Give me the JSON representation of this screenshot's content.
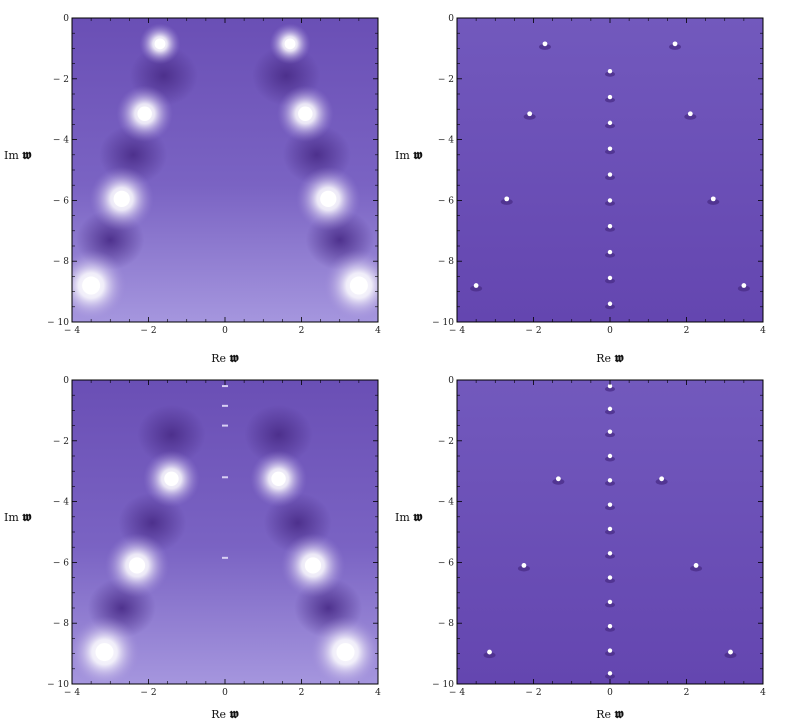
{
  "colors": {
    "density_dark": "#4b2e8a",
    "density_mid": "#6a4fb5",
    "density_light": "#9b86d6",
    "pole_highlight": "#ffffff",
    "frame": "#000000"
  },
  "axis_text": {
    "x_prefix": "Re",
    "y_prefix": "Im",
    "symbol": "𝖜"
  },
  "chart_data": [
    {
      "type": "heatmap",
      "position": "top-left",
      "xlim": [
        -4,
        4
      ],
      "ylim": [
        -10,
        0
      ],
      "x_ticks": [
        -4,
        -2,
        0,
        2,
        4
      ],
      "y_ticks": [
        0,
        -2,
        -4,
        -6,
        -8,
        -10
      ],
      "style": "smooth",
      "poles": [
        {
          "x": -1.7,
          "y": -0.85,
          "strength": 0.4
        },
        {
          "x": 1.7,
          "y": -0.85,
          "strength": 0.4
        },
        {
          "x": -2.1,
          "y": -3.15,
          "strength": 0.7
        },
        {
          "x": 2.1,
          "y": -3.15,
          "strength": 0.7
        },
        {
          "x": -2.7,
          "y": -5.95,
          "strength": 0.85
        },
        {
          "x": 2.7,
          "y": -5.95,
          "strength": 0.85
        },
        {
          "x": -3.5,
          "y": -8.8,
          "strength": 1.0
        },
        {
          "x": 3.5,
          "y": -8.8,
          "strength": 1.0
        }
      ],
      "zeros": [
        {
          "x": -1.6,
          "y": -1.9
        },
        {
          "x": 1.6,
          "y": -1.9
        },
        {
          "x": -2.4,
          "y": -4.5
        },
        {
          "x": 2.4,
          "y": -4.5
        },
        {
          "x": -3.0,
          "y": -7.3
        },
        {
          "x": 3.0,
          "y": -7.3
        }
      ],
      "axis_poles": []
    },
    {
      "type": "heatmap",
      "position": "top-right",
      "xlim": [
        -4,
        4
      ],
      "ylim": [
        -10,
        0
      ],
      "x_ticks": [
        -4,
        -2,
        0,
        2,
        4
      ],
      "y_ticks": [
        0,
        -2,
        -4,
        -6,
        -8,
        -10
      ],
      "style": "sharp",
      "poles": [
        {
          "x": -1.7,
          "y": -0.85
        },
        {
          "x": 1.7,
          "y": -0.85
        },
        {
          "x": -2.1,
          "y": -3.15
        },
        {
          "x": 2.1,
          "y": -3.15
        },
        {
          "x": -2.7,
          "y": -5.95
        },
        {
          "x": 2.7,
          "y": -5.95
        },
        {
          "x": -3.5,
          "y": -8.8
        },
        {
          "x": 3.5,
          "y": -8.8
        }
      ],
      "zeros": [],
      "axis_poles": [
        -1.75,
        -2.6,
        -3.45,
        -4.3,
        -5.15,
        -6.0,
        -6.85,
        -7.7,
        -8.55,
        -9.4
      ]
    },
    {
      "type": "heatmap",
      "position": "bottom-left",
      "xlim": [
        -4,
        4
      ],
      "ylim": [
        -10,
        0
      ],
      "x_ticks": [
        -4,
        -2,
        0,
        2,
        4
      ],
      "y_ticks": [
        0,
        -2,
        -4,
        -6,
        -8,
        -10
      ],
      "style": "smooth",
      "poles": [
        {
          "x": -1.4,
          "y": -3.25,
          "strength": 0.7
        },
        {
          "x": 1.4,
          "y": -3.25,
          "strength": 0.7
        },
        {
          "x": -2.3,
          "y": -6.1,
          "strength": 0.85
        },
        {
          "x": 2.3,
          "y": -6.1,
          "strength": 0.85
        },
        {
          "x": -3.15,
          "y": -8.95,
          "strength": 1.0
        },
        {
          "x": 3.15,
          "y": -8.95,
          "strength": 1.0
        }
      ],
      "zeros": [
        {
          "x": -1.4,
          "y": -1.8
        },
        {
          "x": 1.4,
          "y": -1.8
        },
        {
          "x": -1.9,
          "y": -4.7
        },
        {
          "x": 1.9,
          "y": -4.7
        },
        {
          "x": -2.7,
          "y": -7.5
        },
        {
          "x": 2.7,
          "y": -7.5
        }
      ],
      "axis_poles": [
        -0.2,
        -0.85,
        -1.5,
        -3.2,
        -5.85
      ]
    },
    {
      "type": "heatmap",
      "position": "bottom-right",
      "xlim": [
        -4,
        4
      ],
      "ylim": [
        -10,
        0
      ],
      "x_ticks": [
        -4,
        -2,
        0,
        2,
        4
      ],
      "y_ticks": [
        0,
        -2,
        -4,
        -6,
        -8,
        -10
      ],
      "style": "sharp",
      "poles": [
        {
          "x": -1.35,
          "y": -3.25
        },
        {
          "x": 1.35,
          "y": -3.25
        },
        {
          "x": -2.25,
          "y": -6.1
        },
        {
          "x": 2.25,
          "y": -6.1
        },
        {
          "x": -3.15,
          "y": -8.95
        },
        {
          "x": 3.15,
          "y": -8.95
        }
      ],
      "zeros": [],
      "axis_poles": [
        -0.2,
        -0.95,
        -1.7,
        -2.5,
        -3.3,
        -4.1,
        -4.9,
        -5.7,
        -6.5,
        -7.3,
        -8.1,
        -8.9,
        -9.65
      ]
    }
  ]
}
